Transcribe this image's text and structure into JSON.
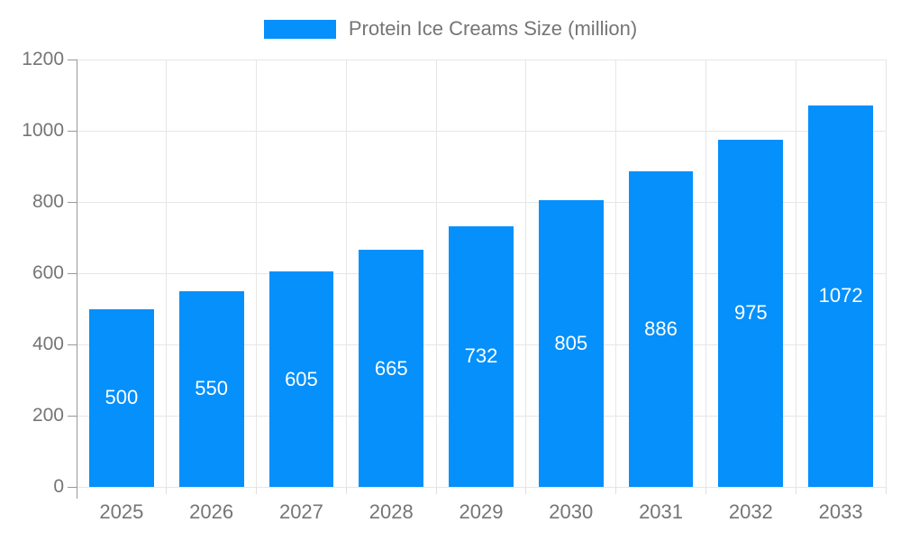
{
  "legend": {
    "label": "Protein Ice Creams Size (million)",
    "swatch_color": "#0590fb"
  },
  "chart_data": {
    "type": "bar",
    "title": "Protein Ice Creams Size (million)",
    "series_name": "Protein Ice Creams Size (million)",
    "categories": [
      "2025",
      "2026",
      "2027",
      "2028",
      "2029",
      "2030",
      "2031",
      "2032",
      "2033"
    ],
    "values": [
      500,
      550,
      605,
      665,
      732,
      805,
      886,
      975,
      1072
    ],
    "xlabel": "",
    "ylabel": "",
    "ylim": [
      0,
      1200
    ],
    "yticks": [
      0,
      200,
      400,
      600,
      800,
      1000,
      1200
    ],
    "grid": true,
    "legend_position": "top",
    "bar_color": "#0590fb",
    "bar_label_color": "#ffffff",
    "bar_labels_visible": true
  },
  "colors": {
    "bar": "#0590fb",
    "axis_line": "#999999",
    "gridline": "#e6e6e6",
    "tick_text": "#757575",
    "legend_text": "#757575",
    "bar_label_text": "#ffffff",
    "background": "#ffffff"
  }
}
